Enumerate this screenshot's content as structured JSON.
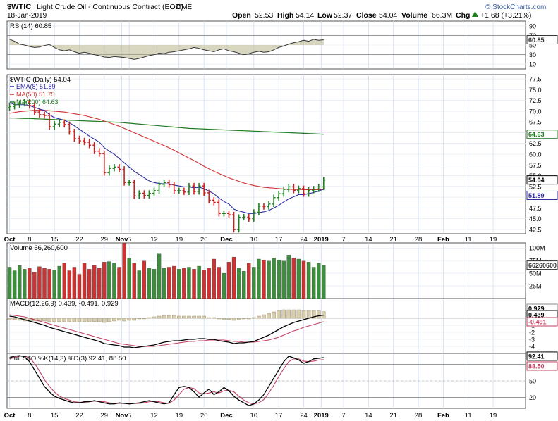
{
  "header": {
    "symbol": "$WTIC",
    "name": "Light Crude Oil - Continuous Contract (EOD)",
    "exchange": "CME",
    "date": "18-Jan-2019",
    "brand": "© StockCharts.com",
    "open_label": "Open",
    "open": "52.53",
    "high_label": "High",
    "high": "54.14",
    "low_label": "Low",
    "low": "52.37",
    "close_label": "Close",
    "close": "54.04",
    "volume_label": "Volume",
    "volume": "66.3M",
    "change_label": "Chg",
    "change": "+1.68 (+3.21%)",
    "change_icon": "up-triangle-icon",
    "colors": {
      "up": "#1e7e1e",
      "down": "#cc2020",
      "accent": "#2b4ea0"
    }
  },
  "chart_data": [
    {
      "type": "line",
      "panel": "rsi",
      "legend": "RSI(14) 60.85",
      "ylim": [
        0,
        100
      ],
      "ticks": [
        90,
        70,
        50,
        30,
        10
      ],
      "tick_labels": [
        "90",
        "70",
        "50",
        "30",
        "10"
      ],
      "reference_lines": [
        70,
        30
      ],
      "last_label": "60.85",
      "values": [
        62,
        58,
        52,
        50,
        47,
        45,
        46,
        49,
        51,
        45,
        40,
        38,
        40,
        36,
        33,
        35,
        33,
        30,
        28,
        25,
        24,
        26,
        25,
        24,
        22,
        20,
        22,
        25,
        28,
        30,
        33,
        32,
        35,
        36,
        38,
        40,
        42,
        45,
        43,
        40,
        38,
        36,
        40,
        42,
        38,
        36,
        33,
        30,
        32,
        35,
        37,
        35,
        36,
        40,
        45,
        48,
        52,
        55,
        57,
        60,
        58,
        62,
        60,
        61
      ]
    },
    {
      "type": "bar",
      "panel": "price",
      "legend": "$WTIC (Daily) 54.04",
      "series_legends": [
        "EMA(8) 51.89",
        "MA(50) 51.75",
        "MA(200) 64.63"
      ],
      "series_colors": [
        "#2b2ba0",
        "#d03030",
        "#207a20"
      ],
      "ylim": [
        41.5,
        78.5
      ],
      "ticks": [
        77.5,
        75.0,
        72.5,
        70.0,
        67.5,
        65.0,
        62.5,
        60.0,
        57.5,
        55.0,
        52.5,
        50.0,
        47.5,
        45.0,
        42.5
      ],
      "tick_labels": [
        "77.5",
        "75.0",
        "72.5",
        "70.0",
        "67.5",
        "65.0",
        "62.5",
        "60.0",
        "57.5",
        "55.0",
        "52.5",
        "50.0",
        "47.5",
        "45.0",
        "42.5"
      ],
      "last_labels": [
        "54.04",
        "51.89",
        "64.63"
      ],
      "close": [
        71.1,
        71.5,
        71.8,
        72.1,
        71.3,
        69.8,
        69.2,
        69.0,
        66.4,
        67.0,
        67.4,
        66.9,
        65.2,
        63.6,
        63.1,
        62.8,
        62.1,
        60.7,
        60.1,
        55.7,
        56.7,
        57.0,
        56.5,
        53.4,
        53.4,
        50.3,
        50.9,
        50.4,
        50.9,
        51.5,
        53.0,
        53.4,
        52.9,
        51.5,
        51.5,
        51.2,
        52.6,
        51.3,
        52.6,
        51.0,
        49.3,
        48.8,
        46.2,
        46.2,
        45.9,
        42.5,
        45.3,
        45.4,
        45.0,
        46.5,
        47.9,
        47.8,
        48.4,
        49.9,
        50.8,
        51.8,
        52.4,
        51.6,
        52.0,
        50.8,
        51.6,
        51.9,
        52.4,
        54.0
      ],
      "ema": [
        72.0,
        71.5,
        71.5,
        71.5,
        71.3,
        70.9,
        70.5,
        70.2,
        69.2,
        68.5,
        68.2,
        67.9,
        67.3,
        66.6,
        65.8,
        65.0,
        64.2,
        63.5,
        62.8,
        61.5,
        60.7,
        60.0,
        59.0,
        58.0,
        57.0,
        56.0,
        55.3,
        54.5,
        53.8,
        53.4,
        53.2,
        53.1,
        53.1,
        52.8,
        52.6,
        52.4,
        52.4,
        52.2,
        52.3,
        52.0,
        51.4,
        50.8,
        49.8,
        49.0,
        48.4,
        47.2,
        46.8,
        46.5,
        46.2,
        46.2,
        46.4,
        46.6,
        46.9,
        47.5,
        48.1,
        48.9,
        49.6,
        50.1,
        50.6,
        50.6,
        50.8,
        51.1,
        51.4,
        51.9
      ],
      "ma50": [
        69.5,
        69.7,
        69.9,
        70.0,
        70.1,
        70.2,
        70.2,
        70.2,
        70.1,
        70.0,
        69.9,
        69.8,
        69.6,
        69.4,
        69.2,
        69.0,
        68.7,
        68.4,
        68.1,
        67.7,
        67.3,
        66.9,
        66.5,
        66.0,
        65.5,
        65.0,
        64.5,
        64.0,
        63.5,
        63.0,
        62.5,
        62.0,
        61.5,
        60.9,
        60.3,
        59.7,
        59.1,
        58.5,
        57.9,
        57.2,
        56.6,
        56.0,
        55.5,
        55.0,
        54.5,
        54.1,
        53.7,
        53.3,
        53.0,
        52.7,
        52.5,
        52.3,
        52.2,
        52.1,
        52.0,
        51.9,
        51.85,
        51.8,
        51.8,
        51.75,
        51.75,
        51.75,
        51.75,
        51.75
      ],
      "ma200": [
        68.4,
        68.4,
        68.35,
        68.3,
        68.3,
        68.25,
        68.2,
        68.15,
        68.1,
        68.05,
        68.0,
        67.95,
        67.9,
        67.85,
        67.8,
        67.75,
        67.7,
        67.65,
        67.6,
        67.55,
        67.5,
        67.45,
        67.4,
        67.3,
        67.2,
        67.1,
        67.0,
        66.9,
        66.8,
        66.7,
        66.6,
        66.5,
        66.4,
        66.3,
        66.2,
        66.1,
        66.0,
        65.95,
        65.9,
        65.85,
        65.8,
        65.75,
        65.7,
        65.65,
        65.6,
        65.55,
        65.5,
        65.45,
        65.4,
        65.35,
        65.3,
        65.25,
        65.2,
        65.15,
        65.1,
        65.05,
        65.0,
        64.95,
        64.9,
        64.85,
        64.8,
        64.75,
        64.7,
        64.63
      ]
    },
    {
      "type": "bar",
      "panel": "volume",
      "legend": "Volume 66,260,600",
      "ylim": [
        0,
        110
      ],
      "unit": "M",
      "ticks": [
        100,
        75,
        50,
        25
      ],
      "tick_labels": [
        "100M",
        "75M",
        "50M",
        "25M"
      ],
      "last_label": "66260600",
      "values": [
        62,
        55,
        65,
        58,
        60,
        52,
        63,
        60,
        58,
        56,
        64,
        70,
        55,
        62,
        48,
        70,
        58,
        66,
        60,
        72,
        73,
        70,
        62,
        110,
        80,
        70,
        55,
        74,
        60,
        58,
        88,
        60,
        62,
        64,
        58,
        60,
        62,
        58,
        64,
        56,
        60,
        78,
        62,
        50,
        72,
        82,
        60,
        54,
        70,
        62,
        78,
        76,
        74,
        80,
        76,
        74,
        86,
        80,
        78,
        74,
        72,
        62,
        70,
        66
      ]
    },
    {
      "type": "line",
      "panel": "macd",
      "legend": "MACD(12,26,9) 0.439, -0.491, 0.929",
      "ylim": [
        -5,
        2.8
      ],
      "ticks": [
        -1,
        -2,
        -3,
        -4
      ],
      "tick_labels": [
        "-1",
        "-2",
        "-3",
        "-4"
      ],
      "last_labels": [
        "0.929",
        "0.439",
        "-0.491"
      ],
      "macd": [
        0.3,
        0.2,
        0.0,
        -0.2,
        -0.4,
        -0.6,
        -0.8,
        -1.0,
        -1.3,
        -1.5,
        -1.7,
        -1.9,
        -2.1,
        -2.3,
        -2.5,
        -2.7,
        -2.9,
        -3.1,
        -3.3,
        -3.6,
        -3.7,
        -3.8,
        -3.9,
        -4.1,
        -4.1,
        -4.2,
        -4.1,
        -4.0,
        -3.9,
        -3.8,
        -3.6,
        -3.4,
        -3.3,
        -3.2,
        -3.2,
        -3.1,
        -3.0,
        -3.0,
        -2.9,
        -2.9,
        -3.0,
        -3.0,
        -3.2,
        -3.3,
        -3.4,
        -3.6,
        -3.5,
        -3.5,
        -3.4,
        -3.3,
        -3.0,
        -2.7,
        -2.4,
        -2.0,
        -1.6,
        -1.2,
        -0.9,
        -0.6,
        -0.4,
        -0.2,
        0.0,
        0.2,
        0.35,
        0.44
      ],
      "signal": [
        0.5,
        0.4,
        0.3,
        0.2,
        0.0,
        -0.2,
        -0.4,
        -0.6,
        -0.8,
        -1.0,
        -1.2,
        -1.4,
        -1.6,
        -1.8,
        -2.0,
        -2.2,
        -2.4,
        -2.6,
        -2.8,
        -3.0,
        -3.2,
        -3.4,
        -3.6,
        -3.7,
        -3.8,
        -3.9,
        -4.0,
        -4.0,
        -4.0,
        -4.0,
        -3.9,
        -3.8,
        -3.7,
        -3.6,
        -3.5,
        -3.4,
        -3.3,
        -3.3,
        -3.2,
        -3.2,
        -3.1,
        -3.1,
        -3.1,
        -3.1,
        -3.2,
        -3.3,
        -3.3,
        -3.4,
        -3.4,
        -3.4,
        -3.3,
        -3.2,
        -3.1,
        -2.9,
        -2.7,
        -2.4,
        -2.1,
        -1.8,
        -1.6,
        -1.3,
        -1.1,
        -0.9,
        -0.7,
        -0.49
      ],
      "histogram": [
        -0.2,
        -0.2,
        -0.3,
        -0.4,
        -0.4,
        -0.4,
        -0.4,
        -0.4,
        -0.5,
        -0.5,
        -0.5,
        -0.5,
        -0.5,
        -0.5,
        -0.5,
        -0.5,
        -0.5,
        -0.5,
        -0.5,
        -0.6,
        -0.5,
        -0.4,
        -0.3,
        -0.4,
        -0.3,
        -0.3,
        -0.1,
        0.0,
        0.1,
        0.2,
        0.3,
        0.4,
        0.4,
        0.4,
        0.3,
        0.3,
        0.3,
        0.3,
        0.3,
        0.3,
        0.1,
        0.1,
        -0.1,
        -0.2,
        -0.2,
        -0.3,
        -0.2,
        -0.1,
        0.0,
        0.1,
        0.3,
        0.5,
        0.7,
        0.9,
        1.1,
        1.2,
        1.2,
        1.2,
        1.2,
        1.1,
        1.1,
        1.1,
        1.05,
        0.93
      ]
    },
    {
      "type": "line",
      "panel": "sto",
      "legend": "Full STO %K(14,3) %D(3) 92.41, 88.50",
      "ylim": [
        0,
        100
      ],
      "ticks": [
        80,
        50,
        20
      ],
      "tick_labels": [
        "80",
        "50",
        "20"
      ],
      "reference_lines": [
        80,
        20
      ],
      "last_labels": [
        "92.41",
        "88.50"
      ],
      "k": [
        92,
        95,
        96,
        94,
        85,
        70,
        55,
        40,
        30,
        22,
        18,
        15,
        12,
        10,
        10,
        12,
        12,
        14,
        12,
        10,
        8,
        8,
        10,
        9,
        8,
        9,
        10,
        12,
        14,
        12,
        10,
        8,
        10,
        25,
        38,
        40,
        38,
        30,
        20,
        28,
        35,
        25,
        30,
        38,
        32,
        22,
        15,
        10,
        5,
        8,
        15,
        25,
        40,
        55,
        70,
        85,
        95,
        92,
        88,
        82,
        85,
        90,
        91,
        92.41
      ],
      "d": [
        90,
        93,
        95,
        95,
        92,
        82,
        68,
        52,
        40,
        30,
        22,
        18,
        15,
        12,
        11,
        11,
        12,
        13,
        13,
        12,
        10,
        9,
        9,
        9,
        9,
        9,
        9,
        10,
        12,
        13,
        12,
        10,
        9,
        15,
        25,
        35,
        38,
        36,
        28,
        26,
        28,
        30,
        28,
        32,
        33,
        30,
        22,
        15,
        10,
        8,
        10,
        16,
        28,
        42,
        58,
        72,
        85,
        90,
        90,
        86,
        85,
        86,
        88,
        88.5
      ]
    },
    {
      "type": "axis",
      "panel": "dates",
      "x_tick_labels": [
        "Oct",
        "8",
        "15",
        "22",
        "29",
        "Nov",
        "5",
        "12",
        "19",
        "26",
        "Dec",
        "10",
        "17",
        "24",
        "2019",
        "7",
        "14",
        "21",
        "28",
        "Feb",
        "11",
        "19"
      ],
      "x_tick_positions": [
        0,
        4,
        9,
        14,
        19,
        22.5,
        24,
        29,
        34,
        39,
        43.5,
        49,
        54,
        59,
        62.5,
        67,
        72,
        77,
        82,
        87,
        92,
        97
      ],
      "bold_labels": [
        "Oct",
        "Nov",
        "Dec",
        "2019",
        "Feb"
      ]
    }
  ]
}
